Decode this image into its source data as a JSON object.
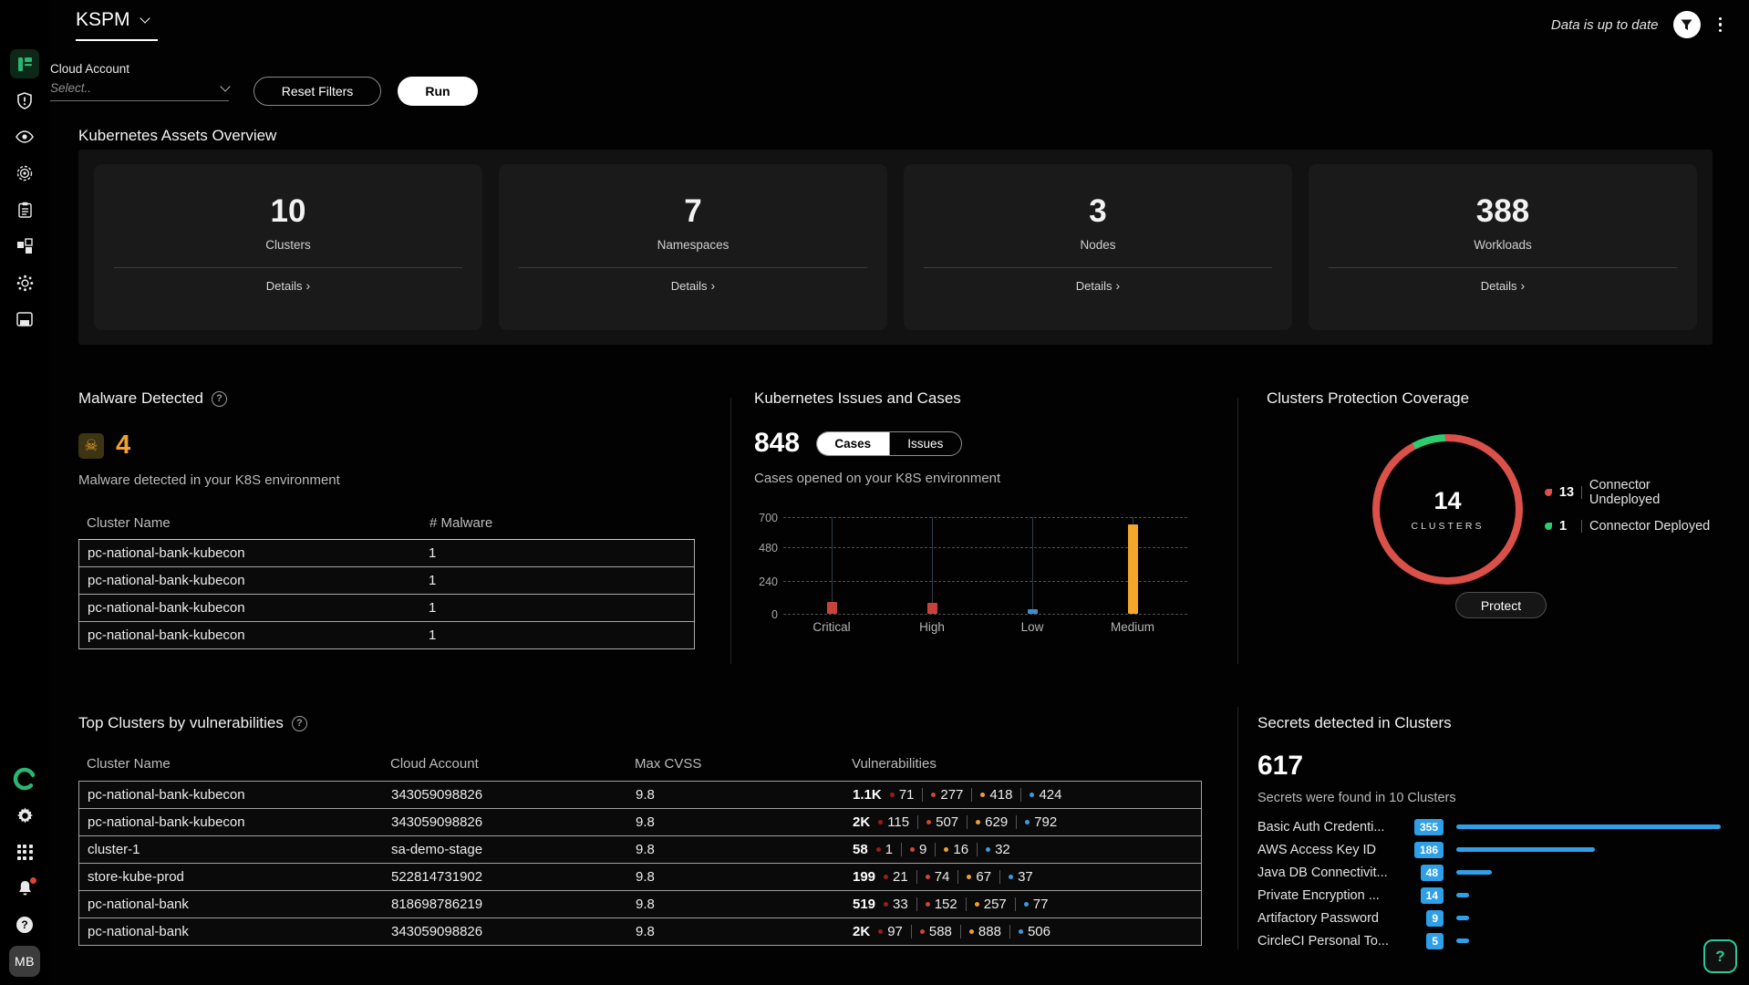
{
  "header": {
    "app_title": "KSPM",
    "status": "Data is up to date"
  },
  "filters": {
    "cloud_account_label": "Cloud Account",
    "cloud_account_placeholder": "Select..",
    "reset_label": "Reset Filters",
    "run_label": "Run"
  },
  "assets_overview": {
    "title": "Kubernetes Assets Overview",
    "details_label": "Details",
    "cards": [
      {
        "value": "10",
        "label": "Clusters"
      },
      {
        "value": "7",
        "label": "Namespaces"
      },
      {
        "value": "3",
        "label": "Nodes"
      },
      {
        "value": "388",
        "label": "Workloads"
      }
    ]
  },
  "malware": {
    "title": "Malware Detected",
    "count": "4",
    "subtitle": "Malware detected in your K8S environment",
    "columns": [
      "Cluster Name",
      "# Malware"
    ],
    "rows": [
      [
        "pc-national-bank-kubecon",
        "1"
      ],
      [
        "pc-national-bank-kubecon",
        "1"
      ],
      [
        "pc-national-bank-kubecon",
        "1"
      ],
      [
        "pc-national-bank-kubecon",
        "1"
      ]
    ]
  },
  "issues": {
    "title": "Kubernetes Issues and Cases",
    "count": "848",
    "tabs": [
      "Cases",
      "Issues"
    ],
    "active_tab": "Cases",
    "subtitle": "Cases opened on your K8S environment"
  },
  "protection": {
    "title": "Clusters Protection Coverage",
    "center_value": "14",
    "center_label": "CLUSTERS",
    "legend": [
      {
        "value": "13",
        "label": "Connector Undeployed",
        "color": "#db5049"
      },
      {
        "value": "1",
        "label": "Connector Deployed",
        "color": "#2ecc71"
      }
    ],
    "button_label": "Protect"
  },
  "top_clusters": {
    "title": "Top Clusters by vulnerabilities",
    "columns": [
      "Cluster Name",
      "Cloud Account",
      "Max CVSS",
      "Vulnerabilities"
    ],
    "severity_colors": [
      "#9b1c1c",
      "#d0453a",
      "#ef9f2c",
      "#3b9ae0"
    ],
    "rows": [
      {
        "cluster": "pc-national-bank-kubecon",
        "account": "343059098826",
        "cvss": "9.8",
        "total": "1.1K",
        "severities": [
          "71",
          "277",
          "418",
          "424"
        ]
      },
      {
        "cluster": "pc-national-bank-kubecon",
        "account": "343059098826",
        "cvss": "9.8",
        "total": "2K",
        "severities": [
          "115",
          "507",
          "629",
          "792"
        ]
      },
      {
        "cluster": "cluster-1",
        "account": "sa-demo-stage",
        "cvss": "9.8",
        "total": "58",
        "severities": [
          "1",
          "9",
          "16",
          "32"
        ]
      },
      {
        "cluster": "store-kube-prod",
        "account": "522814731902",
        "cvss": "9.8",
        "total": "199",
        "severities": [
          "21",
          "74",
          "67",
          "37"
        ]
      },
      {
        "cluster": "pc-national-bank",
        "account": "818698786219",
        "cvss": "9.8",
        "total": "519",
        "severities": [
          "33",
          "152",
          "257",
          "77"
        ]
      },
      {
        "cluster": "pc-national-bank",
        "account": "343059098826",
        "cvss": "9.8",
        "total": "2K",
        "severities": [
          "97",
          "588",
          "888",
          "506"
        ]
      }
    ]
  },
  "secrets": {
    "title": "Secrets detected in Clusters",
    "count": "617",
    "subtitle": "Secrets were found in 10 Clusters",
    "bar_color": "#2f9fe8",
    "items": [
      {
        "label": "Basic Auth Credenti...",
        "value": 355
      },
      {
        "label": "AWS Access Key ID",
        "value": 186
      },
      {
        "label": "Java DB Connectivit...",
        "value": 48
      },
      {
        "label": "Private Encryption ...",
        "value": 14
      },
      {
        "label": "Artifactory Password",
        "value": 9
      },
      {
        "label": "CircleCI Personal To...",
        "value": 5
      }
    ]
  },
  "sidebar": {
    "top_icons": [
      "dashboard",
      "shield-alert",
      "eye",
      "target",
      "clipboard",
      "blocks",
      "virus",
      "asset-card"
    ],
    "bottom_icons": [
      "brand-ring",
      "gear",
      "apps-grid",
      "notifications-bell",
      "help-circle"
    ],
    "avatar_initials": "MB",
    "accent_color": "#2bb573"
  },
  "help_fab_label": "?",
  "chart_data": [
    {
      "type": "bar",
      "title": "Cases opened on your K8S environment",
      "categories": [
        "Critical",
        "High",
        "Low",
        "Medium"
      ],
      "values": [
        85,
        80,
        35,
        648
      ],
      "colors": [
        "#c8423a",
        "#c8423a",
        "#3b8fd4",
        "#f2a62c"
      ],
      "yticks": [
        0,
        240,
        480,
        700
      ],
      "ylim": [
        0,
        700
      ],
      "grid": true,
      "legend_position": "none"
    },
    {
      "type": "pie",
      "title": "Clusters Protection Coverage",
      "labels": [
        "Connector Undeployed",
        "Connector Deployed"
      ],
      "values": [
        13,
        1
      ],
      "colors": [
        "#db5049",
        "#2ecc71"
      ],
      "donut": true,
      "center_text": "14 CLUSTERS"
    },
    {
      "type": "bar",
      "orientation": "horizontal",
      "title": "Secrets detected in Clusters",
      "categories": [
        "Basic Auth Credenti...",
        "AWS Access Key ID",
        "Java DB Connectivit...",
        "Private Encryption ...",
        "Artifactory Password",
        "CircleCI Personal To..."
      ],
      "values": [
        355,
        186,
        48,
        14,
        9,
        5
      ],
      "xlim": [
        0,
        355
      ]
    }
  ]
}
